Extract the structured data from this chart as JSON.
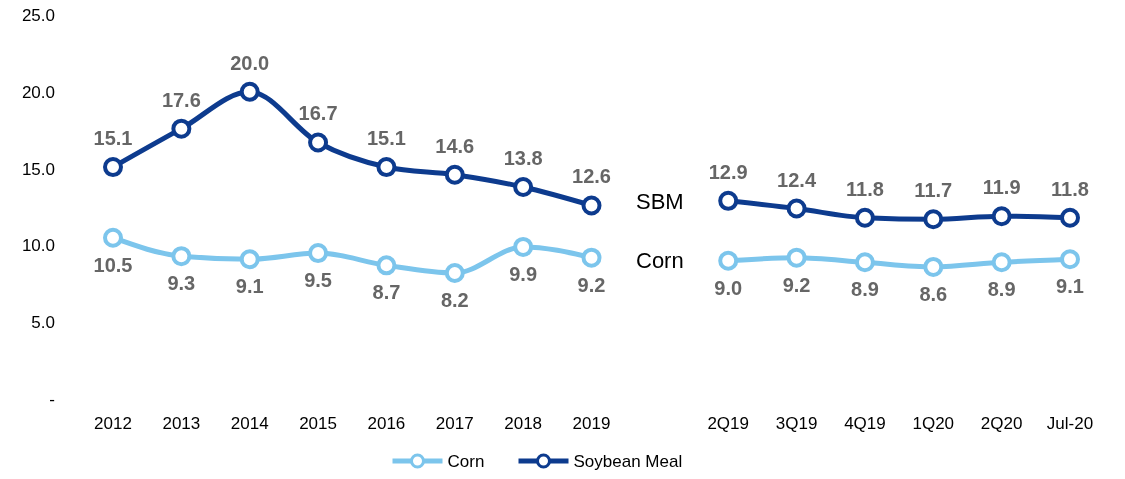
{
  "chart_data": {
    "type": "line",
    "categories": [
      "2012",
      "2013",
      "2014",
      "2015",
      "2016",
      "2017",
      "2018",
      "2019",
      null,
      "2Q19",
      "3Q19",
      "4Q19",
      "1Q20",
      "2Q20",
      "Jul-20"
    ],
    "series": [
      {
        "name": "Corn",
        "color": "#7cc5ec",
        "values": [
          10.5,
          9.3,
          9.1,
          9.5,
          8.7,
          8.2,
          9.9,
          9.2,
          null,
          9.0,
          9.2,
          8.9,
          8.6,
          8.9,
          9.1
        ],
        "value_labels": [
          "10.5",
          "9.3",
          "9.1",
          "9.5",
          "8.7",
          "8.2",
          "9.9",
          "9.2",
          null,
          "9.0",
          "9.2",
          "8.9",
          "8.6",
          "8.9",
          "9.1"
        ]
      },
      {
        "name": "Soybean Meal",
        "color": "#0d3b8e",
        "values": [
          15.1,
          17.6,
          20.0,
          16.7,
          15.1,
          14.6,
          13.8,
          12.6,
          null,
          12.9,
          12.4,
          11.8,
          11.7,
          11.9,
          11.8
        ],
        "value_labels": [
          "15.1",
          "17.6",
          "20.0",
          "16.7",
          "15.1",
          "14.6",
          "13.8",
          "12.6",
          null,
          "12.9",
          "12.4",
          "11.8",
          "11.7",
          "11.9",
          "11.8"
        ]
      }
    ],
    "ylim": [
      0,
      25
    ],
    "yticks": [
      {
        "value": 0,
        "label": "-"
      },
      {
        "value": 5,
        "label": "5.0"
      },
      {
        "value": 10,
        "label": "10.0"
      },
      {
        "value": 15,
        "label": "15.0"
      },
      {
        "value": 20,
        "label": "20.0"
      },
      {
        "value": 25,
        "label": "25.0"
      }
    ],
    "annotations": [
      "SBM",
      "Corn"
    ],
    "grid": false,
    "legend": "bottom",
    "marker": "circle",
    "line_style": "solid"
  }
}
